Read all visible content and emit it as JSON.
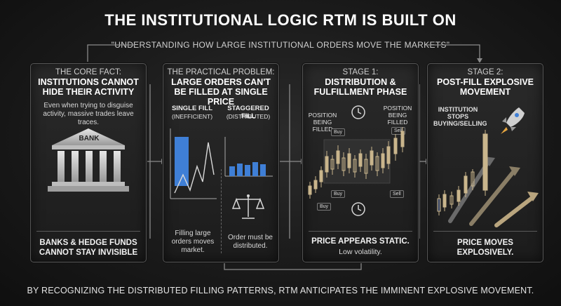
{
  "title": "THE INSTITUTIONAL LOGIC RTM IS BUILT ON",
  "subtitle": "\"UNDERSTANDING HOW LARGE INSTITUTIONAL ORDERS MOVE THE MARKETS\"",
  "panels": [
    {
      "label": "THE CORE FACT:",
      "heading": "INSTITUTIONS CANNOT HIDE THEIR ACTIVITY",
      "note": "Even when trying to disguise activity, massive trades leave traces.",
      "bank_label": "BANK",
      "bottom": "BANKS & HEDGE FUNDS CANNOT STAY INVISIBLE",
      "icon": "bank-icon"
    },
    {
      "label": "THE PRACTICAL PROBLEM:",
      "heading": "LARGE ORDERS CAN'T BE FILLED AT SINGLE PRICE",
      "single_fill_title": "SINGLE FILL",
      "single_fill_sub": "(INEFFICIENT)",
      "staggered_fill_title": "STAGGERED FILL",
      "staggered_fill_sub": "(DISTRIBUTED)",
      "left_caption": "Filling large orders moves market.",
      "right_caption": "Order must be distributed.",
      "icon": "scale-icon"
    },
    {
      "label": "STAGE 1:",
      "heading": "DISTRIBUTION & FULFILLMENT PHASE",
      "left_note": "POSITION BEING FILLED",
      "right_note": "POSITION BEING FILLED",
      "buy_label": "Buy",
      "sell_label": "Sell",
      "bottom": "PRICE APPEARS STATIC.",
      "bottom_sub": "Low volatility.",
      "icon": "clock-icon"
    },
    {
      "label": "STAGE 2:",
      "heading": "POST-FILL EXPLOSIVE MOVEMENT",
      "note": "INSTITUTION STOPS BUYING/SELLING",
      "bottom": "PRICE MOVES EXPLOSIVELY.",
      "icon": "rocket-icon"
    }
  ],
  "footer": "BY RECOGNIZING THE DISTRIBUTED FILLING PATTERNS, RTM ANTICIPATES THE IMMINENT EXPLOSIVE MOVEMENT.",
  "colors": {
    "accent_blue": "#3f7fd6",
    "candle_tan": "#c9b58c",
    "background": "#1a1a1a"
  }
}
